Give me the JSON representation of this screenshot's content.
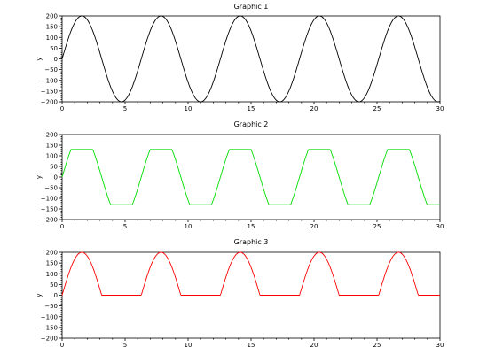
{
  "chart_data": [
    {
      "type": "line",
      "title": "Graphic 1",
      "ylabel": "y",
      "xlim": [
        0,
        30
      ],
      "ylim": [
        -200,
        200
      ],
      "x_ticks": [
        "0",
        "5",
        "10",
        "15",
        "20",
        "25",
        "30"
      ],
      "y_ticks": [
        "200",
        "150",
        "100",
        "50",
        "0",
        "−50",
        "−100",
        "−150",
        "−200"
      ],
      "series": [
        {
          "function": "200*sin(x)",
          "x_range": [
            0,
            30
          ],
          "color": "#000000"
        }
      ]
    },
    {
      "type": "line",
      "title": "Graphic 2",
      "ylabel": "y",
      "xlim": [
        0,
        30
      ],
      "ylim": [
        -200,
        200
      ],
      "x_ticks": [
        "0",
        "5",
        "10",
        "15",
        "20",
        "25",
        "30"
      ],
      "y_ticks": [
        "200",
        "150",
        "100",
        "50",
        "0",
        "−50",
        "−100",
        "−150",
        "−200"
      ],
      "series": [
        {
          "function": "clip(200*sin(x), -130, 130)",
          "x_range": [
            0,
            30
          ],
          "color": "#00dd00"
        }
      ]
    },
    {
      "type": "line",
      "title": "Graphic 3",
      "ylabel": "y",
      "xlim": [
        0,
        30
      ],
      "ylim": [
        -200,
        200
      ],
      "x_ticks": [
        "0",
        "5",
        "10",
        "15",
        "20",
        "25",
        "30"
      ],
      "y_ticks": [
        "200",
        "150",
        "100",
        "50",
        "0",
        "−50",
        "−100",
        "−150",
        "−200"
      ],
      "series": [
        {
          "function": "max(200*sin(x), 0)",
          "x_range": [
            0,
            30
          ],
          "color": "#ff0000"
        }
      ]
    }
  ]
}
